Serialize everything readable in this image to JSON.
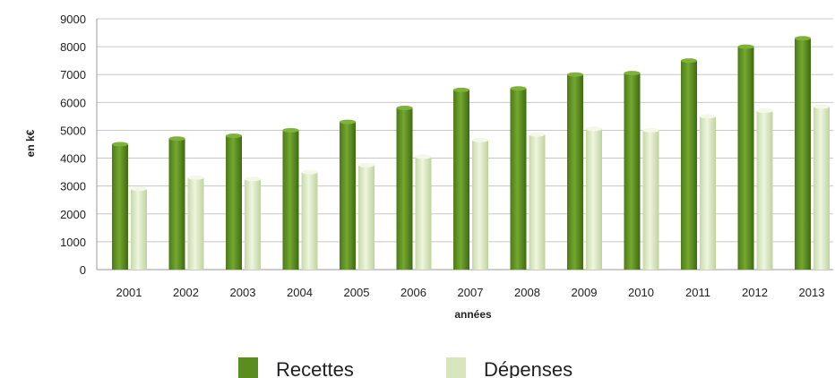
{
  "chart_data": {
    "type": "bar",
    "title": "",
    "xlabel": "années",
    "ylabel": "en k€",
    "ylim": [
      0,
      9000
    ],
    "yticks": [
      0,
      1000,
      2000,
      3000,
      4000,
      5000,
      6000,
      7000,
      8000,
      9000
    ],
    "grid": true,
    "legend_position": "bottom",
    "categories": [
      "2001",
      "2002",
      "2003",
      "2004",
      "2005",
      "2006",
      "2007",
      "2008",
      "2009",
      "2010",
      "2011",
      "2012",
      "2013"
    ],
    "series": [
      {
        "name": "Recettes",
        "color": "#5a8c1e",
        "values": [
          4500,
          4700,
          4800,
          5000,
          5300,
          5800,
          6450,
          6500,
          7000,
          7050,
          7500,
          8000,
          8300
        ]
      },
      {
        "name": "Dépenses",
        "color": "#d7e6bd",
        "values": [
          2900,
          3300,
          3250,
          3500,
          3750,
          4050,
          4650,
          4850,
          5050,
          5000,
          5500,
          5700,
          5850
        ]
      }
    ]
  }
}
